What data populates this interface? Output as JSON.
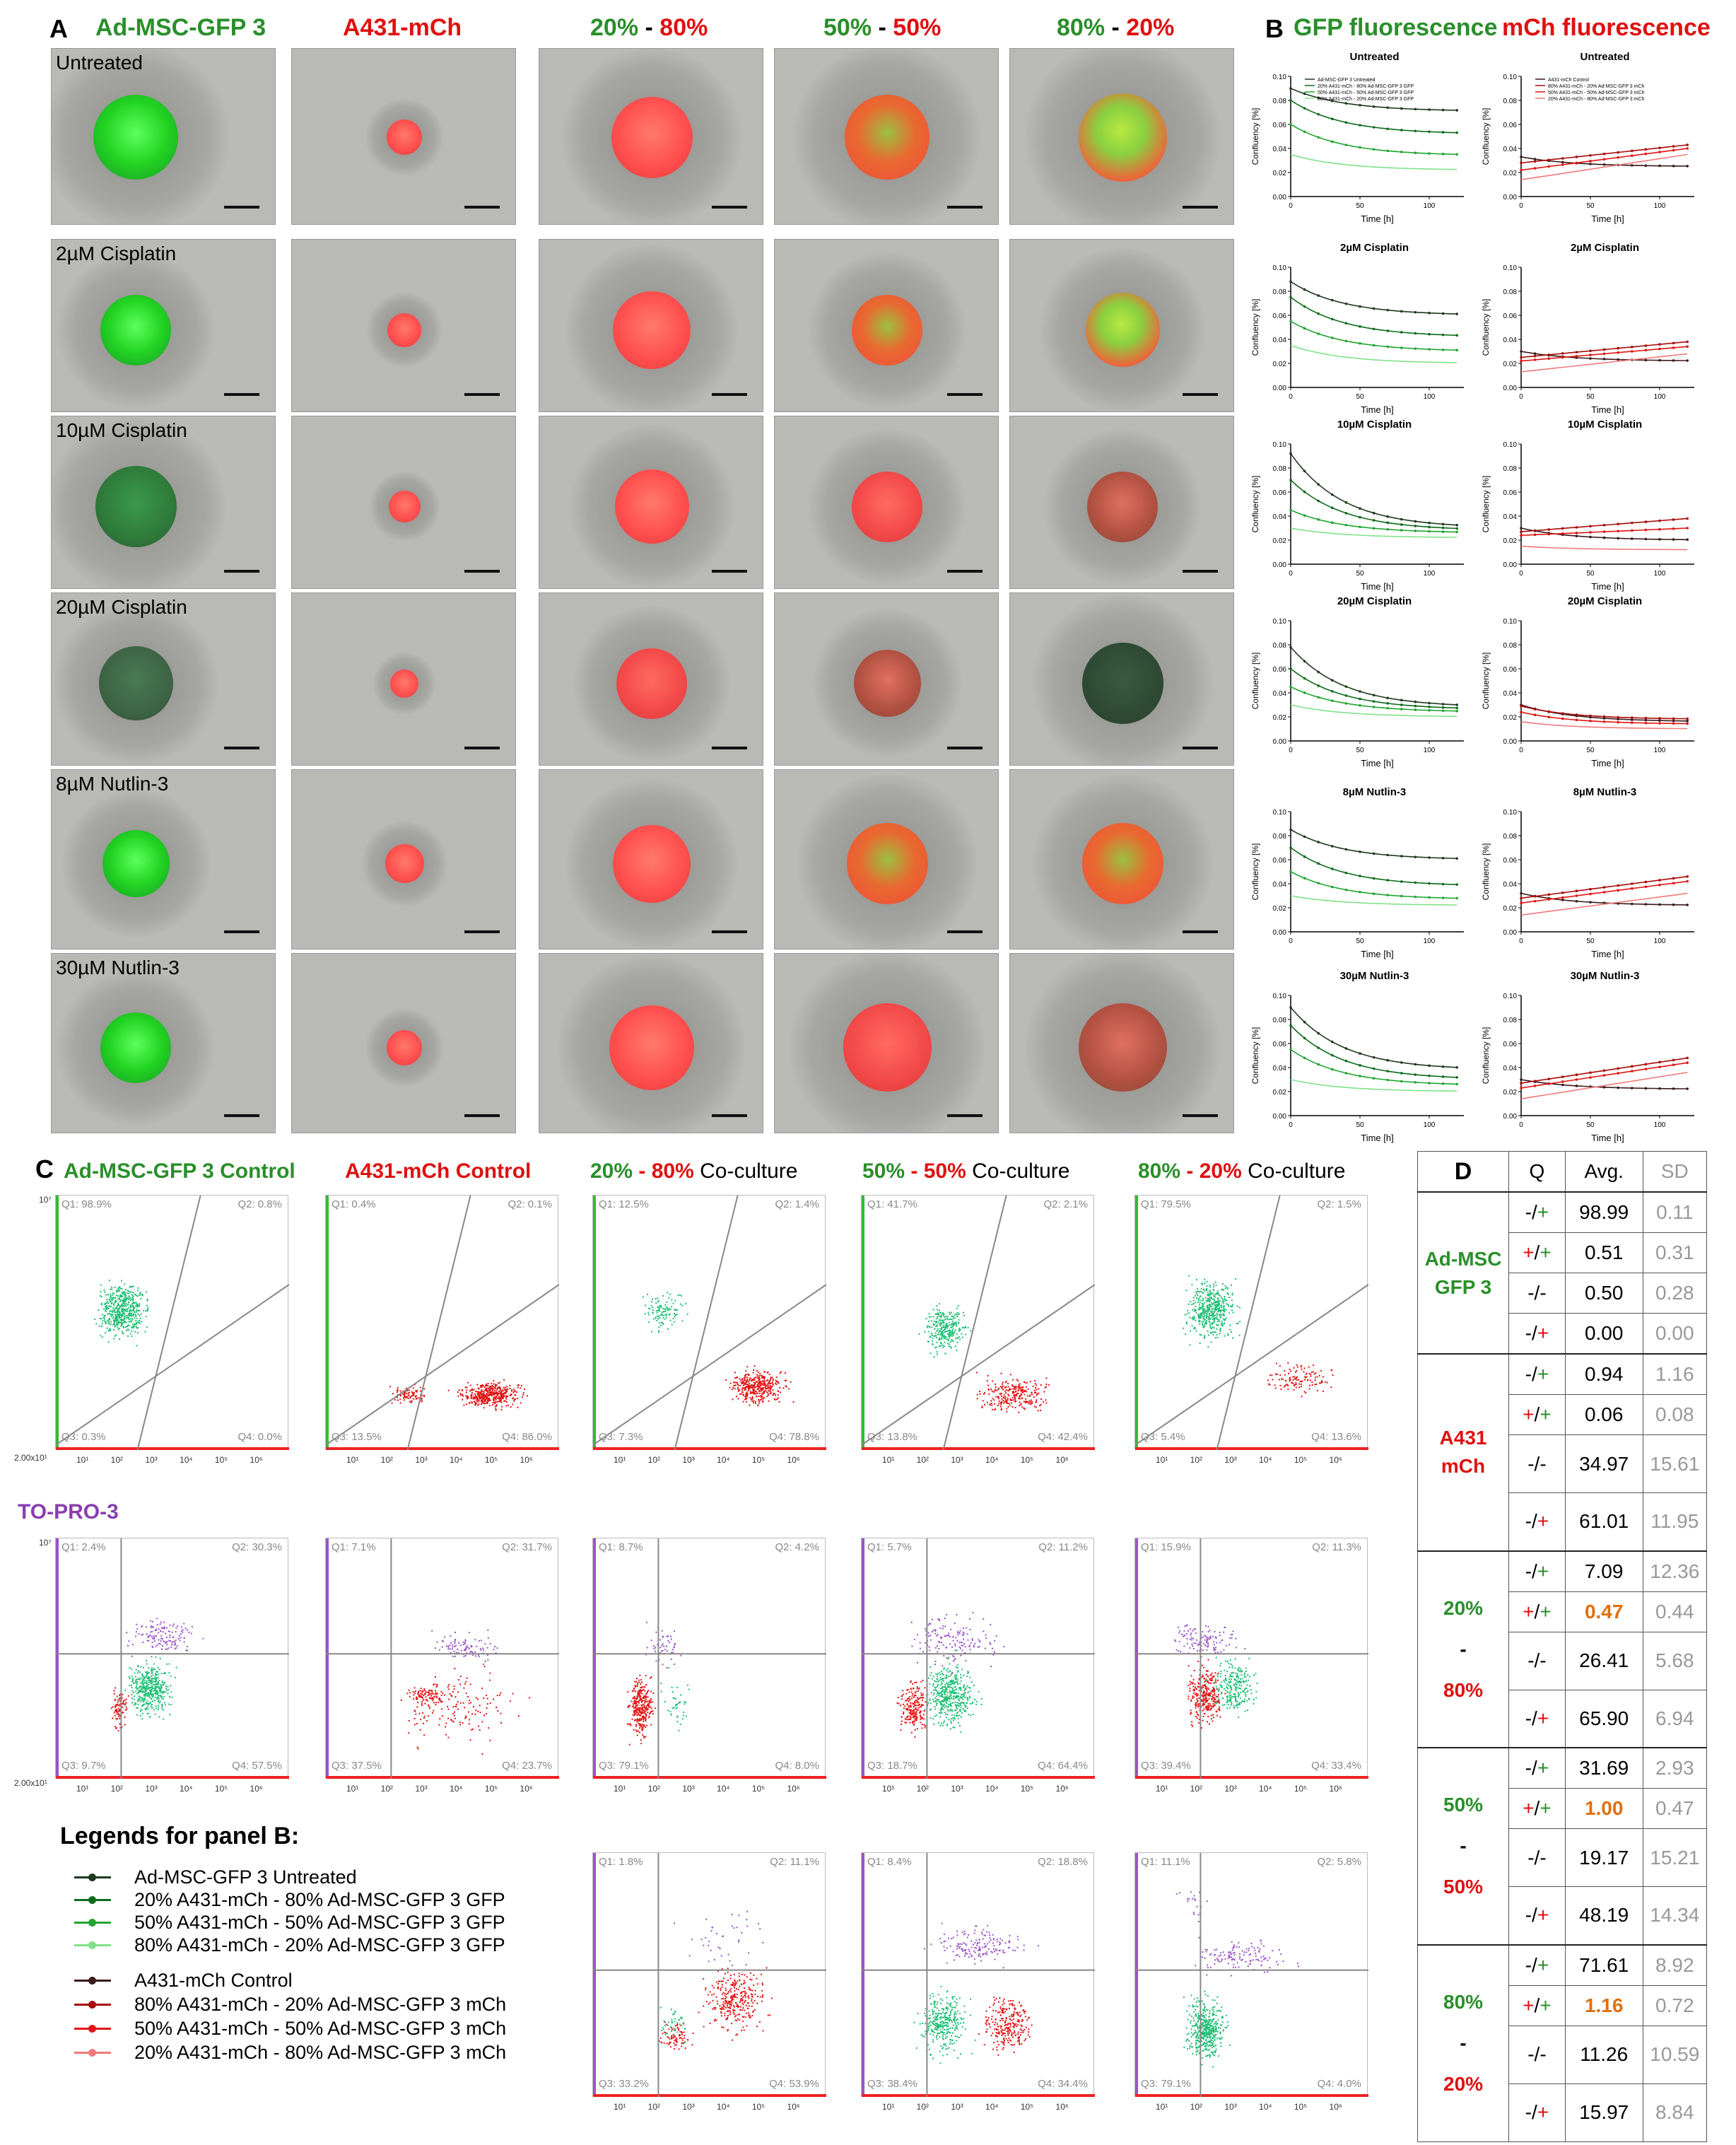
{
  "panelA": {
    "letter": "A",
    "columns": [
      "Ad-MSC-GFP 3",
      "A431-mCh"
    ],
    "co_columns": [
      {
        "a": "20%",
        "sep": " - ",
        "b": "80%"
      },
      {
        "a": "50%",
        "sep": " - ",
        "b": "50%"
      },
      {
        "a": "80%",
        "sep": " - ",
        "b": "20%"
      }
    ],
    "rows": [
      "Untreated",
      "2µM Cisplatin",
      "10µM Cisplatin",
      "20µM Cisplatin",
      "8µM Nutlin-3",
      "30µM Nutlin-3"
    ]
  },
  "panelB": {
    "letter": "B",
    "gfp_title": "GFP fluorescence",
    "mch_title": "mCh fluorescence",
    "ylabel": "Confluency [%]",
    "xlabel": "Time [h]",
    "x_ticks": [
      "0",
      "50",
      "100"
    ],
    "y_ticks": [
      "0.00",
      "0.02",
      "0.04",
      "0.06",
      "0.08",
      "0.10"
    ],
    "chart_titles": [
      "Untreated",
      "2µM Cisplatin",
      "10µM Cisplatin",
      "20µM Cisplatin",
      "8µM Nutlin-3",
      "30µM Nutlin-3"
    ],
    "gfp_legend": [
      "Ad-MSC-GFP 3 Untreated",
      "20% A431-mCh - 80% Ad-MSC-GFP 3 GFP",
      "50% A431-mCh - 50% Ad-MSC-GFP 3 GFP",
      "80% A431-mCh - 20% Ad-MSC-GFP 3 GFP"
    ],
    "mch_legend": [
      "A431-mCh Control",
      "80% A431-mCh - 20% Ad-MSC-GFP 3 mCh",
      "50% A431-mCh - 50% Ad-MSC-GFP 3 mCh",
      "20% A431-mCh - 80% Ad-MSC-GFP 3 mCh"
    ]
  },
  "chart_data": [
    {
      "type": "line",
      "title": "Untreated",
      "xlabel": "Time [h]",
      "ylabel": "Confluency [%]",
      "ylim": [
        0,
        0.1
      ],
      "x": [
        0,
        120
      ],
      "series": [
        {
          "name": "Ad-MSC-GFP 3 Untreated",
          "values": [
            0.09,
            0.071
          ]
        },
        {
          "name": "20% A431-mCh - 80% Ad-MSC-GFP 3 GFP",
          "values": [
            0.08,
            0.052
          ]
        },
        {
          "name": "50% A431-mCh - 50% Ad-MSC-GFP 3 GFP",
          "values": [
            0.06,
            0.034
          ]
        },
        {
          "name": "80% A431-mCh - 20% Ad-MSC-GFP 3 GFP",
          "values": [
            0.035,
            0.022
          ]
        }
      ]
    },
    {
      "type": "line",
      "title": "Untreated",
      "xlabel": "Time [h]",
      "ylabel": "Confluency [%]",
      "ylim": [
        0,
        0.1
      ],
      "x": [
        0,
        120
      ],
      "series": [
        {
          "name": "A431-mCh Control",
          "values": [
            0.033,
            0.025
          ]
        },
        {
          "name": "80% A431-mCh - 20% Ad-MSC-GFP 3 mCh",
          "values": [
            0.028,
            0.043
          ]
        },
        {
          "name": "50% A431-mCh - 50% Ad-MSC-GFP 3 mCh",
          "values": [
            0.022,
            0.04
          ]
        },
        {
          "name": "20% A431-mCh - 80% Ad-MSC-GFP 3 mCh",
          "values": [
            0.014,
            0.035
          ]
        }
      ]
    },
    {
      "type": "line",
      "title": "2µM Cisplatin",
      "xlabel": "Time [h]",
      "ylabel": "Confluency [%]",
      "ylim": [
        0,
        0.1
      ],
      "x": [
        0,
        120
      ],
      "series": [
        {
          "name": "Ad-MSC-GFP 3 Untreated",
          "values": [
            0.088,
            0.06
          ]
        },
        {
          "name": "20% A431-mCh - 80% Ad-MSC-GFP 3 GFP",
          "values": [
            0.075,
            0.042
          ]
        },
        {
          "name": "50% A431-mCh - 50% Ad-MSC-GFP 3 GFP",
          "values": [
            0.055,
            0.03
          ]
        },
        {
          "name": "80% A431-mCh - 20% Ad-MSC-GFP 3 GFP",
          "values": [
            0.035,
            0.02
          ]
        }
      ]
    },
    {
      "type": "line",
      "title": "2µM Cisplatin",
      "xlabel": "Time [h]",
      "ylabel": "Confluency [%]",
      "ylim": [
        0,
        0.1
      ],
      "x": [
        0,
        120
      ],
      "series": [
        {
          "name": "A431-mCh Control",
          "values": [
            0.03,
            0.022
          ]
        },
        {
          "name": "80% A431-mCh - 20% Ad-MSC-GFP 3 mCh",
          "values": [
            0.025,
            0.038
          ]
        },
        {
          "name": "50% A431-mCh - 50% Ad-MSC-GFP 3 mCh",
          "values": [
            0.022,
            0.034
          ]
        },
        {
          "name": "20% A431-mCh - 80% Ad-MSC-GFP 3 mCh",
          "values": [
            0.013,
            0.028
          ]
        }
      ]
    },
    {
      "type": "line",
      "title": "10µM Cisplatin",
      "xlabel": "Time [h]",
      "ylabel": "Confluency [%]",
      "ylim": [
        0,
        0.1
      ],
      "x": [
        0,
        120
      ],
      "series": [
        {
          "name": "Ad-MSC-GFP 3 Untreated",
          "values": [
            0.092,
            0.03
          ]
        },
        {
          "name": "20% A431-mCh - 80% Ad-MSC-GFP 3 GFP",
          "values": [
            0.07,
            0.028
          ]
        },
        {
          "name": "50% A431-mCh - 50% Ad-MSC-GFP 3 GFP",
          "values": [
            0.045,
            0.026
          ]
        },
        {
          "name": "80% A431-mCh - 20% Ad-MSC-GFP 3 GFP",
          "values": [
            0.03,
            0.022
          ]
        }
      ]
    },
    {
      "type": "line",
      "title": "10µM Cisplatin",
      "xlabel": "Time [h]",
      "ylabel": "Confluency [%]",
      "ylim": [
        0,
        0.1
      ],
      "x": [
        0,
        120
      ],
      "series": [
        {
          "name": "A431-mCh Control",
          "values": [
            0.03,
            0.02
          ]
        },
        {
          "name": "80% A431-mCh - 20% Ad-MSC-GFP 3 mCh",
          "values": [
            0.027,
            0.038
          ]
        },
        {
          "name": "50% A431-mCh - 50% Ad-MSC-GFP 3 mCh",
          "values": [
            0.024,
            0.03
          ]
        },
        {
          "name": "20% A431-mCh - 80% Ad-MSC-GFP 3 mCh",
          "values": [
            0.015,
            0.012
          ]
        }
      ]
    },
    {
      "type": "line",
      "title": "20µM Cisplatin",
      "xlabel": "Time [h]",
      "ylabel": "Confluency [%]",
      "ylim": [
        0,
        0.1
      ],
      "x": [
        0,
        120
      ],
      "series": [
        {
          "name": "Ad-MSC-GFP 3 Untreated",
          "values": [
            0.078,
            0.028
          ]
        },
        {
          "name": "20% A431-mCh - 80% Ad-MSC-GFP 3 GFP",
          "values": [
            0.06,
            0.026
          ]
        },
        {
          "name": "50% A431-mCh - 50% Ad-MSC-GFP 3 GFP",
          "values": [
            0.045,
            0.024
          ]
        },
        {
          "name": "80% A431-mCh - 20% Ad-MSC-GFP 3 GFP",
          "values": [
            0.03,
            0.02
          ]
        }
      ]
    },
    {
      "type": "line",
      "title": "20µM Cisplatin",
      "xlabel": "Time [h]",
      "ylabel": "Confluency [%]",
      "ylim": [
        0,
        0.1
      ],
      "x": [
        0,
        120
      ],
      "series": [
        {
          "name": "A431-mCh Control",
          "values": [
            0.03,
            0.016
          ]
        },
        {
          "name": "80% A431-mCh - 20% Ad-MSC-GFP 3 mCh",
          "values": [
            0.029,
            0.018
          ]
        },
        {
          "name": "50% A431-mCh - 50% Ad-MSC-GFP 3 mCh",
          "values": [
            0.024,
            0.014
          ]
        },
        {
          "name": "20% A431-mCh - 80% Ad-MSC-GFP 3 mCh",
          "values": [
            0.016,
            0.01
          ]
        }
      ]
    },
    {
      "type": "line",
      "title": "8µM Nutlin-3",
      "xlabel": "Time [h]",
      "ylabel": "Confluency [%]",
      "ylim": [
        0,
        0.1
      ],
      "x": [
        0,
        120
      ],
      "series": [
        {
          "name": "Ad-MSC-GFP 3 Untreated",
          "values": [
            0.085,
            0.06
          ]
        },
        {
          "name": "20% A431-mCh - 80% Ad-MSC-GFP 3 GFP",
          "values": [
            0.07,
            0.038
          ]
        },
        {
          "name": "50% A431-mCh - 50% Ad-MSC-GFP 3 GFP",
          "values": [
            0.05,
            0.027
          ]
        },
        {
          "name": "80% A431-mCh - 20% Ad-MSC-GFP 3 GFP",
          "values": [
            0.03,
            0.022
          ]
        }
      ]
    },
    {
      "type": "line",
      "title": "8µM Nutlin-3",
      "xlabel": "Time [h]",
      "ylabel": "Confluency [%]",
      "ylim": [
        0,
        0.1
      ],
      "x": [
        0,
        120
      ],
      "series": [
        {
          "name": "A431-mCh Control",
          "values": [
            0.032,
            0.022
          ]
        },
        {
          "name": "80% A431-mCh - 20% Ad-MSC-GFP 3 mCh",
          "values": [
            0.028,
            0.046
          ]
        },
        {
          "name": "50% A431-mCh - 50% Ad-MSC-GFP 3 mCh",
          "values": [
            0.024,
            0.042
          ]
        },
        {
          "name": "20% A431-mCh - 80% Ad-MSC-GFP 3 mCh",
          "values": [
            0.014,
            0.032
          ]
        }
      ]
    },
    {
      "type": "line",
      "title": "30µM Nutlin-3",
      "xlabel": "Time [h]",
      "ylabel": "Confluency [%]",
      "ylim": [
        0,
        0.1
      ],
      "x": [
        0,
        120
      ],
      "series": [
        {
          "name": "Ad-MSC-GFP 3 Untreated",
          "values": [
            0.09,
            0.038
          ]
        },
        {
          "name": "20% A431-mCh - 80% Ad-MSC-GFP 3 GFP",
          "values": [
            0.075,
            0.03
          ]
        },
        {
          "name": "50% A431-mCh - 50% Ad-MSC-GFP 3 GFP",
          "values": [
            0.055,
            0.025
          ]
        },
        {
          "name": "80% A431-mCh - 20% Ad-MSC-GFP 3 GFP",
          "values": [
            0.03,
            0.02
          ]
        }
      ]
    },
    {
      "type": "line",
      "title": "30µM Nutlin-3",
      "xlabel": "Time [h]",
      "ylabel": "Confluency [%]",
      "ylim": [
        0,
        0.1
      ],
      "x": [
        0,
        120
      ],
      "series": [
        {
          "name": "A431-mCh Control",
          "values": [
            0.03,
            0.022
          ]
        },
        {
          "name": "80% A431-mCh - 20% Ad-MSC-GFP 3 mCh",
          "values": [
            0.027,
            0.048
          ]
        },
        {
          "name": "50% A431-mCh - 50% Ad-MSC-GFP 3 mCh",
          "values": [
            0.023,
            0.044
          ]
        },
        {
          "name": "20% A431-mCh - 80% Ad-MSC-GFP 3 mCh",
          "values": [
            0.014,
            0.036
          ]
        }
      ]
    }
  ],
  "panelC": {
    "letter": "C",
    "headers": [
      {
        "a": "Ad-MSC-GFP 3 Control",
        "b": "",
        "c": ""
      },
      {
        "a": "",
        "b": "A431-mCh Control",
        "c": ""
      },
      {
        "a": "20%",
        "b": " - 80%",
        "c": " Co-culture"
      },
      {
        "a": "50%",
        "b": " - 50%",
        "c": " Co-culture"
      },
      {
        "a": "80%",
        "b": " - 20%",
        "c": " Co-culture"
      }
    ],
    "topro_label": "TO-PRO-3",
    "axis_top": "10⁷",
    "axis_bottom": "2.00x10¹",
    "x_ticks": "10¹  10²  10³  10⁴  10⁵  10⁶",
    "row1": [
      [
        "Q1: 98.9%",
        "Q2: 0.8%",
        "Q3: 0.3%",
        "Q4: 0.0%"
      ],
      [
        "Q1: 0.4%",
        "Q2: 0.1%",
        "Q3: 13.5%",
        "Q4: 86.0%"
      ],
      [
        "Q1: 12.5%",
        "Q2: 1.4%",
        "Q3: 7.3%",
        "Q4: 78.8%"
      ],
      [
        "Q1: 41.7%",
        "Q2: 2.1%",
        "Q3: 13.8%",
        "Q4: 42.4%"
      ],
      [
        "Q1: 79.5%",
        "Q2: 1.5%",
        "Q3: 5.4%",
        "Q4: 13.6%"
      ]
    ],
    "row2": [
      [
        "Q1: 2.4%",
        "Q2: 30.3%",
        "Q3: 9.7%",
        "Q4: 57.5%"
      ],
      [
        "Q1: 7.1%",
        "Q2: 31.7%",
        "Q3: 37.5%",
        "Q4: 23.7%"
      ],
      [
        "Q1: 8.7%",
        "Q2: 4.2%",
        "Q3: 79.1%",
        "Q4: 8.0%"
      ],
      [
        "Q1: 5.7%",
        "Q2: 11.2%",
        "Q3: 18.7%",
        "Q4: 64.4%"
      ],
      [
        "Q1: 15.9%",
        "Q2: 11.3%",
        "Q3: 39.4%",
        "Q4: 33.4%"
      ]
    ],
    "row3": [
      [
        "Q1: 1.8%",
        "Q2: 11.1%",
        "Q3: 33.2%",
        "Q4: 53.9%"
      ],
      [
        "Q1: 8.4%",
        "Q2: 18.8%",
        "Q3: 38.4%",
        "Q4: 34.4%"
      ],
      [
        "Q1: 11.1%",
        "Q2: 5.8%",
        "Q3: 79.1%",
        "Q4: 4.0%"
      ]
    ]
  },
  "legends": {
    "title": "Legends for panel B:",
    "items": [
      {
        "label": "Ad-MSC-GFP 3 Untreated",
        "color": "#1e3a1e"
      },
      {
        "label": "20% A431-mCh - 80% Ad-MSC-GFP 3 GFP",
        "color": "#0e6b1a"
      },
      {
        "label": "50% A431-mCh - 50% Ad-MSC-GFP 3 GFP",
        "color": "#21a531"
      },
      {
        "label": "80% A431-mCh - 20% Ad-MSC-GFP 3 GFP",
        "color": "#7fe28a"
      },
      {
        "label": "A431-mCh Control",
        "color": "#3a1a1a"
      },
      {
        "label": "80% A431-mCh - 20% Ad-MSC-GFP 3 mCh",
        "color": "#a80b0b"
      },
      {
        "label": "50% A431-mCh - 50% Ad-MSC-GFP 3 mCh",
        "color": "#e01515"
      },
      {
        "label": "20% A431-mCh - 80% Ad-MSC-GFP 3 mCh",
        "color": "#f07a7a"
      }
    ]
  },
  "panelD": {
    "letter": "D",
    "col_q": "Q",
    "col_avg": "Avg.",
    "col_sd": "SD",
    "groups": [
      {
        "label_a": "Ad-MSC",
        "label_b": "GFP 3",
        "label_c": "",
        "rows": [
          [
            "-/+",
            "98.99",
            "0.11"
          ],
          [
            "+/+",
            "0.51",
            "0.31"
          ],
          [
            "-/-",
            "0.50",
            "0.28"
          ],
          [
            "-/+",
            "0.00",
            "0.00"
          ]
        ]
      },
      {
        "label_a": "A431",
        "label_b": "mCh",
        "label_c": "",
        "rows": [
          [
            "-/+",
            "0.94",
            "1.16"
          ],
          [
            "+/+",
            "0.06",
            "0.08"
          ],
          [
            "-/-",
            "34.97",
            "15.61"
          ],
          [
            "-/+",
            "61.01",
            "11.95"
          ]
        ]
      },
      {
        "label_a": "20%",
        "label_b": "-",
        "label_c": "80%",
        "rows": [
          [
            "-/+",
            "7.09",
            "12.36"
          ],
          [
            "+/+",
            "0.47",
            "0.44"
          ],
          [
            "-/-",
            "26.41",
            "5.68"
          ],
          [
            "-/+",
            "65.90",
            "6.94"
          ]
        ]
      },
      {
        "label_a": "50%",
        "label_b": "-",
        "label_c": "50%",
        "rows": [
          [
            "-/+",
            "31.69",
            "2.93"
          ],
          [
            "+/+",
            "1.00",
            "0.47"
          ],
          [
            "-/-",
            "19.17",
            "15.21"
          ],
          [
            "-/+",
            "48.19",
            "14.34"
          ]
        ]
      },
      {
        "label_a": "80%",
        "label_b": "-",
        "label_c": "20%",
        "rows": [
          [
            "-/+",
            "71.61",
            "8.92"
          ],
          [
            "+/+",
            "1.16",
            "0.72"
          ],
          [
            "-/-",
            "11.26",
            "10.59"
          ],
          [
            "-/+",
            "15.97",
            "8.84"
          ]
        ]
      }
    ]
  }
}
